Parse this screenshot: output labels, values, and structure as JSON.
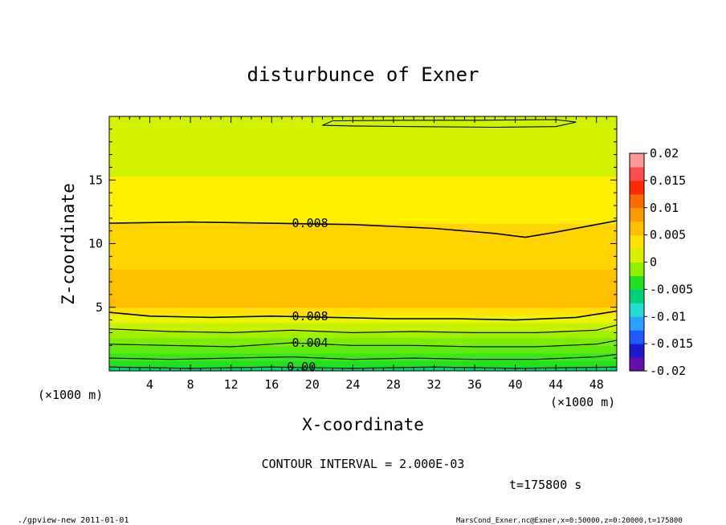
{
  "figure": {
    "title": "disturbunce of Exner",
    "contour_interval_label": "CONTOUR INTERVAL = 2.000E-03",
    "time_label": "t=175800 s",
    "footer_left": "./gpview-new  2011-01-01",
    "footer_right": "MarsCond_Exner.nc@Exner,x=0:50000,z=0:20000,t=175800"
  },
  "chart_data": {
    "type": "heatmap",
    "title": "disturbunce of Exner",
    "xlabel": "X-coordinate",
    "ylabel": "Z-coordinate",
    "x_unit_label": "(×1000 m)",
    "y_unit_label": "(×1000 m)",
    "xlim": [
      0,
      50
    ],
    "ylim": [
      0,
      20
    ],
    "x_ticks": [
      4,
      8,
      12,
      16,
      20,
      24,
      28,
      32,
      36,
      40,
      44,
      48
    ],
    "y_ticks": [
      5,
      10,
      15
    ],
    "colorbar": {
      "levels": [
        -0.02,
        -0.015,
        -0.01,
        -0.005,
        0,
        0.005,
        0.01,
        0.015,
        0.02
      ],
      "tick_labels": [
        "0.02",
        "0.015",
        "0.01",
        "0.005",
        "0",
        "-0.005",
        "-0.01",
        "-0.015",
        "-0.02"
      ],
      "colors_bottom_to_top": [
        "#6a0dad",
        "#1a1acd",
        "#1e5bff",
        "#2aa0ff",
        "#22dcd0",
        "#00d078",
        "#22e01e",
        "#92ef00",
        "#d8f000",
        "#ffe000",
        "#ffbf00",
        "#ff9900",
        "#ff6a00",
        "#ff2a00",
        "#ff4d4d",
        "#ff9999"
      ]
    },
    "contour_interval": 0.002,
    "contour_labels": [
      {
        "x": 18,
        "z": 11.6,
        "text": "0.008"
      },
      {
        "x": 18,
        "z": 4.3,
        "text": "0.008"
      },
      {
        "x": 18,
        "z": 2.2,
        "text": "0.004"
      },
      {
        "x": 17.5,
        "z": 0.3,
        "text": "0.00"
      }
    ],
    "field_bands": [
      {
        "z_from": 0.0,
        "z_to": 0.3,
        "value_range": [
          -0.001,
          0.0
        ],
        "color": "#00d078"
      },
      {
        "z_from": 0.3,
        "z_to": 0.8,
        "value_range": [
          0.0,
          0.001
        ],
        "color": "#22e01e"
      },
      {
        "z_from": 0.8,
        "z_to": 1.4,
        "value_range": [
          0.001,
          0.002
        ],
        "color": "#3ae61a"
      },
      {
        "z_from": 1.4,
        "z_to": 2.0,
        "value_range": [
          0.002,
          0.003
        ],
        "color": "#5fea10"
      },
      {
        "z_from": 2.0,
        "z_to": 2.6,
        "value_range": [
          0.003,
          0.004
        ],
        "color": "#7eed05"
      },
      {
        "z_from": 2.6,
        "z_to": 3.2,
        "value_range": [
          0.004,
          0.005
        ],
        "color": "#a2ef00"
      },
      {
        "z_from": 3.2,
        "z_to": 3.8,
        "value_range": [
          0.005,
          0.006
        ],
        "color": "#c6f200"
      },
      {
        "z_from": 3.8,
        "z_to": 4.4,
        "value_range": [
          0.006,
          0.008
        ],
        "color": "#ecf500"
      },
      {
        "z_from": 4.4,
        "z_to": 5.0,
        "value_range": [
          0.008,
          0.009
        ],
        "color": "#ffe000"
      },
      {
        "z_from": 5.0,
        "z_to": 8.0,
        "value_range": [
          0.009,
          0.01
        ],
        "color": "#ffbf00"
      },
      {
        "z_from": 8.0,
        "z_to": 11.6,
        "value_range": [
          0.008,
          0.009
        ],
        "color": "#ffd400"
      },
      {
        "z_from": 11.6,
        "z_to": 15.3,
        "value_range": [
          0.006,
          0.008
        ],
        "color": "#fff000"
      },
      {
        "z_from": 15.3,
        "z_to": 20.0,
        "value_range": [
          0.004,
          0.006
        ],
        "color": "#d2f200"
      }
    ],
    "contours": [
      {
        "level": 0.008,
        "points": [
          [
            0,
            11.6
          ],
          [
            8,
            11.7
          ],
          [
            16,
            11.6
          ],
          [
            24,
            11.5
          ],
          [
            32,
            11.2
          ],
          [
            38,
            10.8
          ],
          [
            41,
            10.5
          ],
          [
            44,
            10.9
          ],
          [
            48,
            11.5
          ],
          [
            50,
            11.8
          ]
        ]
      },
      {
        "level": 0.008,
        "points": [
          [
            0,
            4.6
          ],
          [
            4,
            4.3
          ],
          [
            10,
            4.2
          ],
          [
            16,
            4.3
          ],
          [
            22,
            4.2
          ],
          [
            28,
            4.1
          ],
          [
            34,
            4.1
          ],
          [
            40,
            4.0
          ],
          [
            46,
            4.2
          ],
          [
            50,
            4.7
          ]
        ]
      },
      {
        "level": 0.006,
        "points": [
          [
            0,
            3.3
          ],
          [
            6,
            3.1
          ],
          [
            12,
            3.0
          ],
          [
            18,
            3.2
          ],
          [
            24,
            3.0
          ],
          [
            30,
            3.1
          ],
          [
            36,
            3.0
          ],
          [
            42,
            3.0
          ],
          [
            48,
            3.2
          ],
          [
            50,
            3.6
          ]
        ]
      },
      {
        "level": 0.004,
        "points": [
          [
            0,
            2.1
          ],
          [
            6,
            2.0
          ],
          [
            12,
            1.9
          ],
          [
            18,
            2.2
          ],
          [
            24,
            2.0
          ],
          [
            30,
            2.0
          ],
          [
            36,
            1.9
          ],
          [
            42,
            1.9
          ],
          [
            48,
            2.1
          ],
          [
            50,
            2.4
          ]
        ]
      },
      {
        "level": 0.002,
        "points": [
          [
            0,
            1.0
          ],
          [
            6,
            0.9
          ],
          [
            12,
            1.0
          ],
          [
            18,
            1.1
          ],
          [
            24,
            0.9
          ],
          [
            30,
            1.0
          ],
          [
            36,
            0.9
          ],
          [
            42,
            0.9
          ],
          [
            48,
            1.1
          ],
          [
            50,
            1.3
          ]
        ]
      },
      {
        "level": 0.0,
        "points": [
          [
            0,
            0.3
          ],
          [
            8,
            0.2
          ],
          [
            16,
            0.3
          ],
          [
            24,
            0.2
          ],
          [
            32,
            0.3
          ],
          [
            40,
            0.2
          ],
          [
            50,
            0.3
          ]
        ]
      },
      {
        "level": 0.004,
        "closed": true,
        "points": [
          [
            21,
            19.3
          ],
          [
            22,
            19.65
          ],
          [
            30,
            19.7
          ],
          [
            36,
            19.7
          ],
          [
            44,
            19.75
          ],
          [
            46,
            19.55
          ],
          [
            44,
            19.2
          ],
          [
            38,
            19.15
          ],
          [
            30,
            19.2
          ],
          [
            24,
            19.25
          ]
        ]
      }
    ]
  }
}
